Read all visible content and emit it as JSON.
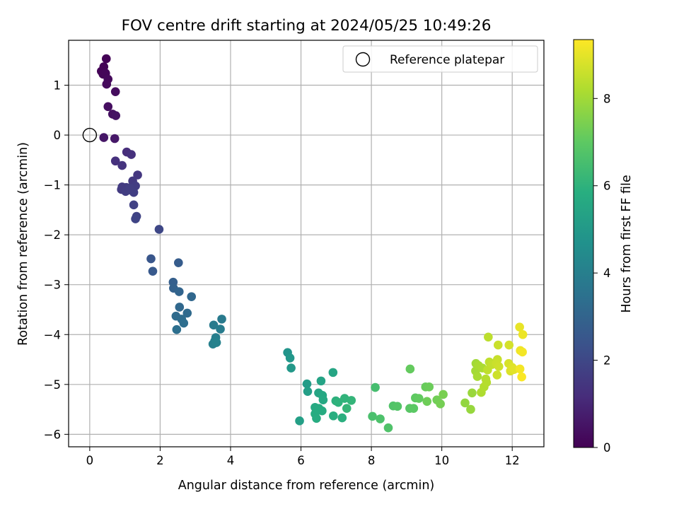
{
  "chart_data": {
    "type": "scatter",
    "title": "FOV centre drift starting at 2024/05/25 10:49:26",
    "xlabel": "Angular distance from reference (arcmin)",
    "ylabel": "Rotation from reference (arcmin)",
    "xlim": [
      -0.6,
      12.9
    ],
    "ylim": [
      -6.25,
      1.9
    ],
    "xticks": [
      0,
      2,
      4,
      6,
      8,
      10,
      12
    ],
    "yticks": [
      -6,
      -5,
      -4,
      -3,
      -2,
      -1,
      0,
      1
    ],
    "grid": true,
    "legend": {
      "position": "top-right",
      "entries": [
        "Reference platepar"
      ]
    },
    "reference_point": {
      "x": 0,
      "y": 0,
      "label": "Reference platepar"
    },
    "colorbar": {
      "label": "Hours from first FF file",
      "range": [
        0,
        9.35
      ],
      "ticks": [
        0,
        2,
        4,
        6,
        8
      ],
      "colormap": "viridis"
    },
    "points": [
      {
        "x": 0.47,
        "y": 1.53,
        "t": 0.05
      },
      {
        "x": 0.4,
        "y": 1.37,
        "t": 0.08
      },
      {
        "x": 0.33,
        "y": 1.28,
        "t": 0.1
      },
      {
        "x": 0.38,
        "y": 1.22,
        "t": 0.12
      },
      {
        "x": 0.45,
        "y": 1.24,
        "t": 0.15
      },
      {
        "x": 0.52,
        "y": 1.12,
        "t": 0.2
      },
      {
        "x": 0.48,
        "y": 1.02,
        "t": 0.25
      },
      {
        "x": 0.73,
        "y": 0.87,
        "t": 0.3
      },
      {
        "x": 0.52,
        "y": 0.57,
        "t": 0.35
      },
      {
        "x": 0.65,
        "y": 0.42,
        "t": 0.4
      },
      {
        "x": 0.74,
        "y": 0.39,
        "t": 0.45
      },
      {
        "x": 0.4,
        "y": -0.05,
        "t": 0.55
      },
      {
        "x": 0.71,
        "y": -0.07,
        "t": 0.6
      },
      {
        "x": 1.05,
        "y": -0.34,
        "t": 1.2
      },
      {
        "x": 1.18,
        "y": -0.39,
        "t": 1.3
      },
      {
        "x": 0.73,
        "y": -0.52,
        "t": 1.3
      },
      {
        "x": 0.92,
        "y": -0.61,
        "t": 1.4
      },
      {
        "x": 1.36,
        "y": -0.8,
        "t": 1.5
      },
      {
        "x": 1.22,
        "y": -0.92,
        "t": 1.55
      },
      {
        "x": 0.92,
        "y": -1.04,
        "t": 1.6
      },
      {
        "x": 1.04,
        "y": -1.05,
        "t": 1.62
      },
      {
        "x": 1.3,
        "y": -1.02,
        "t": 1.65
      },
      {
        "x": 0.9,
        "y": -1.09,
        "t": 1.6
      },
      {
        "x": 1.02,
        "y": -1.13,
        "t": 1.68
      },
      {
        "x": 1.15,
        "y": -1.1,
        "t": 1.7
      },
      {
        "x": 1.25,
        "y": -1.15,
        "t": 1.72
      },
      {
        "x": 1.14,
        "y": -1.06,
        "t": 1.7
      },
      {
        "x": 1.25,
        "y": -1.4,
        "t": 1.8
      },
      {
        "x": 1.33,
        "y": -1.63,
        "t": 1.85
      },
      {
        "x": 1.3,
        "y": -1.68,
        "t": 1.9
      },
      {
        "x": 1.97,
        "y": -1.89,
        "t": 2.0
      },
      {
        "x": 1.74,
        "y": -2.48,
        "t": 2.5
      },
      {
        "x": 1.79,
        "y": -2.73,
        "t": 2.6
      },
      {
        "x": 2.52,
        "y": -2.56,
        "t": 2.7
      },
      {
        "x": 2.37,
        "y": -2.95,
        "t": 2.8
      },
      {
        "x": 2.38,
        "y": -3.07,
        "t": 2.9
      },
      {
        "x": 2.54,
        "y": -3.14,
        "t": 3.0
      },
      {
        "x": 2.89,
        "y": -3.24,
        "t": 3.1
      },
      {
        "x": 2.55,
        "y": -3.45,
        "t": 3.15
      },
      {
        "x": 2.77,
        "y": -3.57,
        "t": 3.2
      },
      {
        "x": 2.45,
        "y": -3.63,
        "t": 3.25
      },
      {
        "x": 2.61,
        "y": -3.69,
        "t": 3.3
      },
      {
        "x": 2.67,
        "y": -3.77,
        "t": 3.35
      },
      {
        "x": 2.47,
        "y": -3.9,
        "t": 3.4
      },
      {
        "x": 3.75,
        "y": -3.69,
        "t": 3.8
      },
      {
        "x": 3.52,
        "y": -3.81,
        "t": 3.85
      },
      {
        "x": 3.71,
        "y": -3.89,
        "t": 3.9
      },
      {
        "x": 3.58,
        "y": -4.06,
        "t": 3.95
      },
      {
        "x": 3.55,
        "y": -4.13,
        "t": 4.0
      },
      {
        "x": 3.5,
        "y": -4.19,
        "t": 4.05
      },
      {
        "x": 3.6,
        "y": -4.16,
        "t": 4.1
      },
      {
        "x": 5.62,
        "y": -4.36,
        "t": 4.8
      },
      {
        "x": 5.69,
        "y": -4.47,
        "t": 4.9
      },
      {
        "x": 5.72,
        "y": -4.67,
        "t": 4.95
      },
      {
        "x": 6.17,
        "y": -4.99,
        "t": 5.1
      },
      {
        "x": 6.19,
        "y": -5.14,
        "t": 5.2
      },
      {
        "x": 5.96,
        "y": -5.73,
        "t": 5.25
      },
      {
        "x": 6.57,
        "y": -4.93,
        "t": 5.4
      },
      {
        "x": 6.91,
        "y": -4.76,
        "t": 5.5
      },
      {
        "x": 6.5,
        "y": -5.17,
        "t": 5.45
      },
      {
        "x": 6.61,
        "y": -5.22,
        "t": 5.55
      },
      {
        "x": 6.63,
        "y": -5.31,
        "t": 5.6
      },
      {
        "x": 6.4,
        "y": -5.46,
        "t": 5.65
      },
      {
        "x": 6.51,
        "y": -5.48,
        "t": 5.7
      },
      {
        "x": 6.6,
        "y": -5.53,
        "t": 5.72
      },
      {
        "x": 6.4,
        "y": -5.59,
        "t": 5.75
      },
      {
        "x": 6.44,
        "y": -5.68,
        "t": 5.78
      },
      {
        "x": 6.92,
        "y": -5.63,
        "t": 5.85
      },
      {
        "x": 7.17,
        "y": -5.67,
        "t": 5.9
      },
      {
        "x": 6.99,
        "y": -5.33,
        "t": 5.95
      },
      {
        "x": 7.06,
        "y": -5.36,
        "t": 6.0
      },
      {
        "x": 7.24,
        "y": -5.28,
        "t": 6.05
      },
      {
        "x": 7.43,
        "y": -5.32,
        "t": 6.1
      },
      {
        "x": 7.3,
        "y": -5.48,
        "t": 6.15
      },
      {
        "x": 8.11,
        "y": -5.06,
        "t": 6.5
      },
      {
        "x": 8.03,
        "y": -5.64,
        "t": 6.6
      },
      {
        "x": 8.25,
        "y": -5.69,
        "t": 6.65
      },
      {
        "x": 8.48,
        "y": -5.87,
        "t": 6.7
      },
      {
        "x": 8.62,
        "y": -5.43,
        "t": 6.75
      },
      {
        "x": 8.74,
        "y": -5.44,
        "t": 6.8
      },
      {
        "x": 9.09,
        "y": -5.48,
        "t": 6.9
      },
      {
        "x": 9.2,
        "y": -5.48,
        "t": 6.95
      },
      {
        "x": 9.25,
        "y": -5.27,
        "t": 7.0
      },
      {
        "x": 9.35,
        "y": -5.28,
        "t": 7.05
      },
      {
        "x": 9.1,
        "y": -4.69,
        "t": 7.1
      },
      {
        "x": 9.54,
        "y": -5.05,
        "t": 7.15
      },
      {
        "x": 9.64,
        "y": -5.05,
        "t": 7.2
      },
      {
        "x": 9.58,
        "y": -5.34,
        "t": 7.25
      },
      {
        "x": 9.86,
        "y": -5.31,
        "t": 7.3
      },
      {
        "x": 9.96,
        "y": -5.39,
        "t": 7.35
      },
      {
        "x": 10.04,
        "y": -5.2,
        "t": 7.4
      },
      {
        "x": 10.66,
        "y": -5.37,
        "t": 7.8
      },
      {
        "x": 10.82,
        "y": -5.5,
        "t": 7.85
      },
      {
        "x": 10.86,
        "y": -5.17,
        "t": 7.9
      },
      {
        "x": 10.97,
        "y": -4.58,
        "t": 8.0
      },
      {
        "x": 10.96,
        "y": -4.73,
        "t": 8.05
      },
      {
        "x": 11.04,
        "y": -4.62,
        "t": 8.1
      },
      {
        "x": 11.01,
        "y": -4.84,
        "t": 8.1
      },
      {
        "x": 11.15,
        "y": -4.67,
        "t": 8.15
      },
      {
        "x": 11.12,
        "y": -5.16,
        "t": 8.2
      },
      {
        "x": 11.2,
        "y": -5.05,
        "t": 8.25
      },
      {
        "x": 11.25,
        "y": -4.89,
        "t": 8.3
      },
      {
        "x": 11.27,
        "y": -4.96,
        "t": 8.3
      },
      {
        "x": 11.32,
        "y": -4.05,
        "t": 8.4
      },
      {
        "x": 11.35,
        "y": -4.55,
        "t": 8.45
      },
      {
        "x": 11.3,
        "y": -4.71,
        "t": 8.45
      },
      {
        "x": 11.43,
        "y": -4.6,
        "t": 8.5
      },
      {
        "x": 11.58,
        "y": -4.5,
        "t": 8.55
      },
      {
        "x": 11.6,
        "y": -4.21,
        "t": 8.6
      },
      {
        "x": 11.55,
        "y": -4.58,
        "t": 8.6
      },
      {
        "x": 11.62,
        "y": -4.64,
        "t": 8.65
      },
      {
        "x": 11.57,
        "y": -4.81,
        "t": 8.65
      },
      {
        "x": 11.91,
        "y": -4.21,
        "t": 8.75
      },
      {
        "x": 11.9,
        "y": -4.58,
        "t": 8.8
      },
      {
        "x": 11.95,
        "y": -4.73,
        "t": 8.85
      },
      {
        "x": 12.0,
        "y": -4.66,
        "t": 8.9
      },
      {
        "x": 12.05,
        "y": -4.7,
        "t": 8.95
      },
      {
        "x": 12.21,
        "y": -3.85,
        "t": 9.05
      },
      {
        "x": 12.3,
        "y": -4.0,
        "t": 9.1
      },
      {
        "x": 12.23,
        "y": -4.32,
        "t": 9.15
      },
      {
        "x": 12.29,
        "y": -4.35,
        "t": 9.2
      },
      {
        "x": 12.22,
        "y": -4.69,
        "t": 9.2
      },
      {
        "x": 12.27,
        "y": -4.85,
        "t": 9.3
      }
    ]
  }
}
